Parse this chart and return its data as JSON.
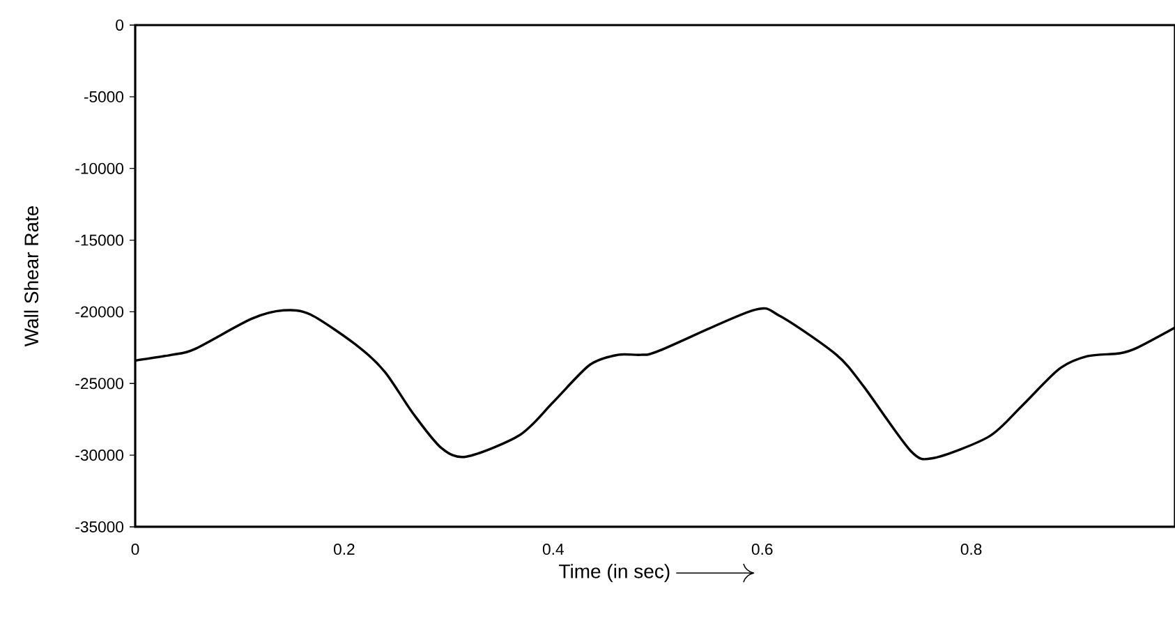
{
  "chart_data": {
    "type": "line",
    "xlabel": "Time (in sec)",
    "ylabel": "Wall Shear Rate",
    "xlim": [
      0,
      0.995
    ],
    "ylim": [
      -35000,
      0
    ],
    "xticks": [
      0,
      0.2,
      0.4,
      0.6,
      0.8
    ],
    "yticks": [
      0,
      -5000,
      -10000,
      -15000,
      -20000,
      -25000,
      -30000,
      -35000
    ],
    "grid": false,
    "series": [
      {
        "color": "#000000",
        "x": [
          0,
          0.035,
          0.057,
          0.111,
          0.142,
          0.168,
          0.213,
          0.239,
          0.266,
          0.293,
          0.317,
          0.368,
          0.4,
          0.435,
          0.462,
          0.484,
          0.502,
          0.591,
          0.617,
          0.671,
          0.697,
          0.742,
          0.764,
          0.817,
          0.848,
          0.884,
          0.911,
          0.942,
          0.959,
          0.995
        ],
        "values": [
          -23400,
          -23000,
          -22600,
          -20500,
          -19900,
          -20200,
          -22400,
          -24200,
          -27100,
          -29500,
          -30100,
          -28600,
          -26300,
          -23700,
          -23000,
          -23000,
          -22700,
          -19900,
          -20300,
          -23000,
          -25200,
          -29700,
          -30200,
          -28700,
          -26600,
          -24000,
          -23100,
          -22900,
          -22500,
          -21100
        ]
      }
    ]
  }
}
